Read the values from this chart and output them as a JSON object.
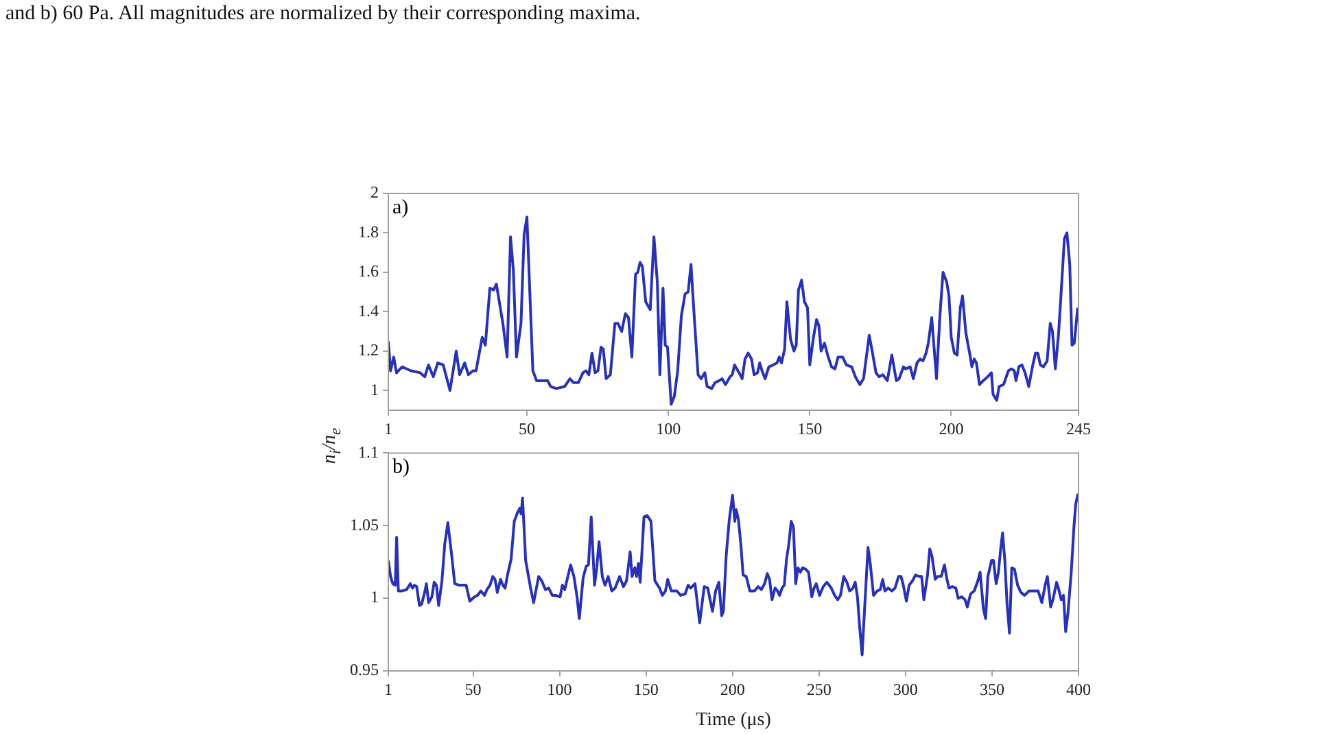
{
  "chart_data": [
    {
      "type": "line",
      "title": "and b) 60 Pa. All magnitudes are normalized by their corresponding maxima.",
      "ylabel": "n$_{i}$/n$_{e}$",
      "annotations": [
        "a)"
      ],
      "xlim": [
        1,
        245
      ],
      "xticks": [
        1,
        50,
        100,
        150,
        200,
        245
      ],
      "ylim": [
        0.9,
        2
      ],
      "yticks": [
        1,
        1.2,
        1.4,
        1.6,
        1.8,
        2
      ],
      "series": [
        {
          "color": "#2832b4",
          "x": [
            1,
            1.8,
            2.9,
            3.9,
            5.9,
            9,
            12.3,
            13.9,
            15.2,
            16.9,
            18.5,
            20.4,
            22.8,
            25,
            26.2,
            28,
            29.3,
            30.9,
            32,
            34.2,
            35.3,
            36.9,
            38.2,
            39.2,
            41.5,
            43,
            44.2,
            45.2,
            46.3,
            47.9,
            49,
            50,
            52.1,
            53.4,
            56,
            57.3,
            58.4,
            60.4,
            63.3,
            65.2,
            66.5,
            68.2,
            69.8,
            70.9,
            71.9,
            73,
            74.1,
            75.1,
            76.2,
            77,
            78,
            79.5,
            81.1,
            82.2,
            83.5,
            84.8,
            85.9,
            87.1,
            88.4,
            89.2,
            90,
            90.8,
            92,
            93.6,
            94.9,
            96.1,
            97,
            98.1,
            98.9,
            99.7,
            101,
            102.1,
            103.3,
            104.6,
            105.9,
            107,
            108,
            108.9,
            110.5,
            111.6,
            112.9,
            113.7,
            115.3,
            116.5,
            118,
            119,
            120.2,
            121.8,
            122.6,
            123.4,
            125,
            126.1,
            127.1,
            128.2,
            129.4,
            130.3,
            131.5,
            132.3,
            133.1,
            134.2,
            135.5,
            137.1,
            138.4,
            139.2,
            140,
            141.1,
            141.9,
            143.2,
            144.4,
            145.2,
            146,
            147.1,
            148.1,
            149.2,
            150,
            151.3,
            152.4,
            153.2,
            154,
            155.2,
            156.5,
            157.7,
            158.9,
            160,
            161.6,
            162.9,
            164.8,
            166.1,
            167.7,
            169,
            171,
            171.8,
            173.4,
            174.5,
            175.8,
            177.4,
            179,
            180.6,
            181.6,
            183.1,
            183.9,
            185.5,
            186.6,
            187.9,
            189,
            190,
            191.1,
            191.9,
            193.1,
            194.8,
            196,
            197.1,
            198.4,
            199.2,
            200,
            201.1,
            202.1,
            203.2,
            204,
            205.2,
            206.5,
            207.3,
            208.1,
            208.9,
            210,
            211.3,
            212.9,
            214.2,
            214.8,
            216.1,
            216.9,
            218.5,
            220.2,
            221.3,
            222.3,
            222.9,
            223.9,
            225,
            226.1,
            227.4,
            228.7,
            229.8,
            230.6,
            231.5,
            232.6,
            233.9,
            235,
            235.8,
            236.8,
            237.9,
            238.7,
            240,
            240.9,
            241.9,
            242.7,
            243.5,
            244.7
          ],
          "values": [
            1.25,
            1.1,
            1.17,
            1.09,
            1.12,
            1.1,
            1.09,
            1.07,
            1.13,
            1.07,
            1.14,
            1.13,
            1.0,
            1.2,
            1.08,
            1.14,
            1.08,
            1.1,
            1.1,
            1.27,
            1.23,
            1.52,
            1.51,
            1.54,
            1.34,
            1.17,
            1.78,
            1.61,
            1.17,
            1.34,
            1.79,
            1.88,
            1.1,
            1.05,
            1.05,
            1.05,
            1.02,
            1.01,
            1.02,
            1.06,
            1.04,
            1.04,
            1.09,
            1.1,
            1.08,
            1.19,
            1.09,
            1.1,
            1.22,
            1.21,
            1.06,
            1.08,
            1.34,
            1.34,
            1.3,
            1.39,
            1.37,
            1.17,
            1.59,
            1.6,
            1.65,
            1.63,
            1.45,
            1.41,
            1.78,
            1.55,
            1.08,
            1.52,
            1.23,
            1.22,
            0.93,
            0.97,
            1.1,
            1.38,
            1.49,
            1.5,
            1.64,
            1.43,
            1.08,
            1.06,
            1.09,
            1.02,
            1.01,
            1.04,
            1.05,
            1.06,
            1.03,
            1.07,
            1.08,
            1.13,
            1.09,
            1.06,
            1.16,
            1.19,
            1.16,
            1.08,
            1.09,
            1.14,
            1.1,
            1.06,
            1.12,
            1.13,
            1.14,
            1.17,
            1.14,
            1.21,
            1.45,
            1.26,
            1.2,
            1.23,
            1.51,
            1.56,
            1.45,
            1.42,
            1.13,
            1.27,
            1.36,
            1.33,
            1.2,
            1.24,
            1.17,
            1.12,
            1.11,
            1.17,
            1.17,
            1.13,
            1.12,
            1.07,
            1.03,
            1.06,
            1.28,
            1.22,
            1.09,
            1.07,
            1.08,
            1.05,
            1.18,
            1.05,
            1.06,
            1.12,
            1.11,
            1.12,
            1.06,
            1.14,
            1.16,
            1.15,
            1.19,
            1.24,
            1.37,
            1.06,
            1.38,
            1.6,
            1.55,
            1.48,
            1.27,
            1.19,
            1.18,
            1.42,
            1.48,
            1.29,
            1.19,
            1.12,
            1.16,
            1.14,
            1.03,
            1.05,
            1.07,
            1.09,
            0.98,
            0.95,
            1.02,
            1.03,
            1.1,
            1.11,
            1.1,
            1.05,
            1.12,
            1.13,
            1.09,
            1.02,
            1.12,
            1.19,
            1.19,
            1.13,
            1.12,
            1.15,
            1.34,
            1.3,
            1.11,
            1.28,
            1.46,
            1.77,
            1.8,
            1.64,
            1.23,
            1.24,
            1.42
          ]
        }
      ]
    },
    {
      "type": "line",
      "xlabel": "Time (μs)",
      "annotations": [
        "b)"
      ],
      "xlim": [
        1,
        400
      ],
      "xticks": [
        1,
        50,
        100,
        150,
        200,
        250,
        300,
        350,
        400
      ],
      "ylim": [
        0.95,
        1.1
      ],
      "yticks": [
        0.95,
        1,
        1.05,
        1.1
      ],
      "series": [
        {
          "color": "#2832b4",
          "x": [
            1,
            2.3,
            3.6,
            5,
            5.8,
            6.8,
            8.9,
            11.6,
            13.7,
            15,
            16.1,
            17.4,
            19,
            20.3,
            22.2,
            23,
            24.3,
            26.2,
            27.5,
            28.8,
            30.1,
            32,
            33.6,
            35.4,
            37.5,
            39.4,
            42,
            46,
            48.1,
            50.8,
            52.6,
            54.5,
            56.6,
            58,
            59.8,
            61.4,
            62.7,
            64,
            65.9,
            67.2,
            68.5,
            69.9,
            72,
            73.8,
            75.7,
            77,
            77.8,
            78.6,
            80.4,
            83.1,
            85,
            87.9,
            89.7,
            91.8,
            93.7,
            95.8,
            97.7,
            100.3,
            101.6,
            103,
            104.8,
            106.4,
            108.3,
            110.1,
            111.4,
            113.6,
            115.4,
            116.7,
            118.3,
            120.2,
            121.5,
            122.8,
            124.7,
            126.3,
            128.1,
            130.2,
            132.1,
            134.7,
            136.9,
            138.7,
            140.8,
            141.9,
            143.5,
            144.5,
            145.6,
            146.6,
            148.8,
            150.6,
            152.8,
            155.1,
            157.8,
            159.4,
            161.2,
            162.5,
            164.6,
            167.8,
            170,
            172.6,
            174.3,
            175.7,
            178.3,
            181,
            183.6,
            185.7,
            187,
            188.4,
            190.2,
            192.1,
            193.7,
            194.7,
            196.3,
            198.1,
            200,
            201.3,
            202.1,
            203.4,
            204.8,
            206.1,
            207.9,
            210,
            212.7,
            214.8,
            216.7,
            218.5,
            220.1,
            221.4,
            222.8,
            224.6,
            226,
            227.2,
            228.6,
            229.9,
            231.2,
            232.5,
            233.9,
            235.2,
            236.5,
            237.8,
            239.2,
            240.5,
            242.3,
            243.9,
            245.8,
            247.1,
            248.4,
            250.3,
            252.4,
            254.5,
            257.1,
            259,
            260.8,
            262.4,
            264.3,
            266.1,
            267.7,
            269.6,
            270.9,
            272.2,
            273.5,
            274.9,
            276.2,
            278.3,
            279.6,
            281.5,
            283.6,
            285.4,
            286.8,
            288.1,
            290,
            292.1,
            293.9,
            296,
            297.4,
            298.7,
            300.5,
            302.1,
            304,
            305.8,
            307.9,
            309.3,
            310.6,
            312.7,
            314,
            315.3,
            317.2,
            318.5,
            320.6,
            322.5,
            323.8,
            325.1,
            327,
            329.1,
            330.4,
            332.5,
            334.4,
            335.7,
            337.6,
            339.7,
            341.8,
            343.1,
            345,
            346.3,
            347.6,
            349.7,
            350.8,
            352.4,
            353.7,
            355,
            356.1,
            357.4,
            358.7,
            360.1,
            361.4,
            363,
            364.8,
            366.7,
            368.8,
            371.4,
            374.1,
            376.7,
            378.8,
            380.7,
            382,
            383.9,
            385.2,
            387.3,
            388.6,
            390,
            391.3,
            392.6,
            393.9,
            395.8,
            397.4,
            398.4,
            399.7
          ],
          "values": [
            1.026,
            1.015,
            1.01,
            1.009,
            1.042,
            1.005,
            1.005,
            1.006,
            1.01,
            1.007,
            1.009,
            1.008,
            0.995,
            0.996,
            1.005,
            1.01,
            0.997,
            1.001,
            1.011,
            1.009,
            0.995,
            1.012,
            1.037,
            1.052,
            1.031,
            1.01,
            1.009,
            1.009,
            0.998,
            1.001,
            1.002,
            1.005,
            1.002,
            1.006,
            1.009,
            1.015,
            1.013,
            1.004,
            1.013,
            1.009,
            1.007,
            1.016,
            1.027,
            1.053,
            1.059,
            1.062,
            1.058,
            1.069,
            1.026,
            1.008,
            0.997,
            1.015,
            1.012,
            1.006,
            1.007,
            1.002,
            1.002,
            1.001,
            1.009,
            1.006,
            1.015,
            1.023,
            1.015,
            1.001,
            0.986,
            1.014,
            1.022,
            1.023,
            1.056,
            1.009,
            1.021,
            1.039,
            1.015,
            1.009,
            1.015,
            1.005,
            1.007,
            1.015,
            1.008,
            1.012,
            1.032,
            1.015,
            1.021,
            1.015,
            1.024,
            1.011,
            1.056,
            1.057,
            1.053,
            1.012,
            1.007,
            1.002,
            1.005,
            1.013,
            1.005,
            1.005,
            1.002,
            1.003,
            1.009,
            1.007,
            1.01,
            0.983,
            1.008,
            1.007,
            0.999,
            0.991,
            1.005,
            1.011,
            0.988,
            0.991,
            1.029,
            1.054,
            1.071,
            1.053,
            1.061,
            1.054,
            1.037,
            1.016,
            1.015,
            1.005,
            1.005,
            1.008,
            1.006,
            1.01,
            1.017,
            1.013,
            0.999,
            1.007,
            1.005,
            1.002,
            1.007,
            1.009,
            1.027,
            1.037,
            1.053,
            1.049,
            1.01,
            1.021,
            1.018,
            1.021,
            1.02,
            1.018,
            1.001,
            1.007,
            1.01,
            1.002,
            1.008,
            1.011,
            1.007,
            1.002,
            0.999,
            1.002,
            1.015,
            1.011,
            1.005,
            1.007,
            1.011,
            1.001,
            0.98,
            0.961,
            0.99,
            1.035,
            1.024,
            1.002,
            1.005,
            1.006,
            1.013,
            1.005,
            1.007,
            1.005,
            1.007,
            1.015,
            1.015,
            1.009,
            0.998,
            1.009,
            1.012,
            1.016,
            1.015,
            1.015,
            0.999,
            1.016,
            1.034,
            1.029,
            1.013,
            1.015,
            1.015,
            1.023,
            1.014,
            1.007,
            1.008,
            1.007,
            1.0,
            1.001,
            0.999,
            0.994,
            1.003,
            1.005,
            1.012,
            1.018,
            0.993,
            0.986,
            1.015,
            1.026,
            1.026,
            1.01,
            1.018,
            1.034,
            1.045,
            1.026,
            0.996,
            0.976,
            1.021,
            1.02,
            1.009,
            1.004,
            1.002,
            1.005,
            1.005,
            1.005,
            0.997,
            1.009,
            1.015,
            0.994,
            0.999,
            1.011,
            1.006,
            0.999,
            1.002,
            0.977,
            0.99,
            1.018,
            1.05,
            1.065,
            1.072
          ]
        }
      ]
    }
  ]
}
